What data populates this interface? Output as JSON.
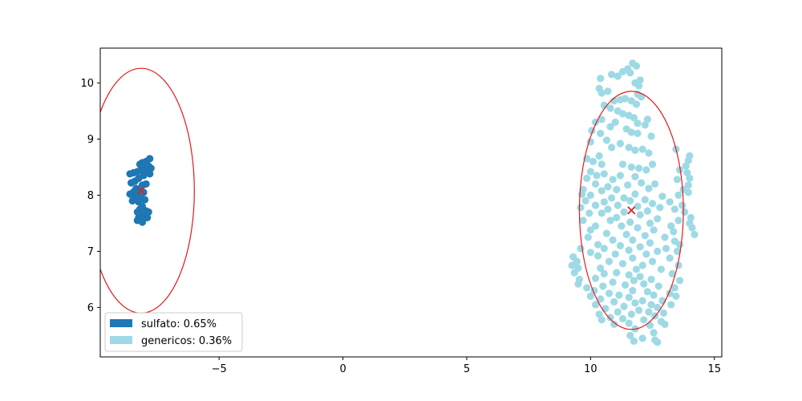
{
  "chart_data": {
    "type": "scatter",
    "title": "",
    "xlabel": "",
    "ylabel": "",
    "xlim": [
      -9.8,
      15.3
    ],
    "ylim": [
      5.12,
      10.62
    ],
    "x_ticks": [
      -5,
      0,
      5,
      10,
      15
    ],
    "y_ticks": [
      6,
      7,
      8,
      9,
      10
    ],
    "x_tick_labels": [
      "−5",
      "0",
      "5",
      "10",
      "15"
    ],
    "y_tick_labels": [
      "6",
      "7",
      "8",
      "9",
      "10"
    ],
    "grid": false,
    "legend_position": "lower-left",
    "legend": [
      "sulfato: 0.65%",
      "genericos: 0.36%"
    ],
    "series": [
      {
        "name": "sulfato: 0.65%",
        "color": "#1f77b4",
        "centroid": [
          -8.15,
          8.08
        ],
        "ellipse": {
          "center": [
            -8.15,
            8.08
          ],
          "half_width_x": 2.15,
          "half_height_y": 2.18,
          "color": "#e31a1c"
        },
        "points": [
          [
            -7.8,
            8.65
          ],
          [
            -7.95,
            8.6
          ],
          [
            -8.1,
            8.58
          ],
          [
            -8.2,
            8.55
          ],
          [
            -7.85,
            8.52
          ],
          [
            -8.0,
            8.5
          ],
          [
            -7.75,
            8.48
          ],
          [
            -8.15,
            8.45
          ],
          [
            -8.3,
            8.42
          ],
          [
            -7.9,
            8.4
          ],
          [
            -8.45,
            8.4
          ],
          [
            -8.6,
            8.38
          ],
          [
            -7.8,
            8.38
          ],
          [
            -8.05,
            8.35
          ],
          [
            -8.25,
            8.3
          ],
          [
            -8.4,
            8.25
          ],
          [
            -7.95,
            8.2
          ],
          [
            -8.1,
            8.18
          ],
          [
            -8.55,
            8.22
          ],
          [
            -8.35,
            8.12
          ],
          [
            -8.2,
            8.1
          ],
          [
            -8.45,
            8.06
          ],
          [
            -8.6,
            8.02
          ],
          [
            -8.3,
            8.0
          ],
          [
            -8.05,
            8.05
          ],
          [
            -8.15,
            7.95
          ],
          [
            -8.4,
            7.95
          ],
          [
            -8.5,
            7.9
          ],
          [
            -8.25,
            7.88
          ],
          [
            -8.0,
            7.92
          ],
          [
            -8.1,
            7.8
          ],
          [
            -8.2,
            7.75
          ],
          [
            -7.95,
            7.72
          ],
          [
            -8.3,
            7.7
          ],
          [
            -8.0,
            7.68
          ],
          [
            -7.85,
            7.7
          ],
          [
            -8.15,
            7.65
          ],
          [
            -8.25,
            7.6
          ],
          [
            -7.9,
            7.6
          ],
          [
            -8.05,
            7.58
          ],
          [
            -8.3,
            7.55
          ],
          [
            -8.1,
            7.52
          ]
        ]
      },
      {
        "name": "genericos: 0.36%",
        "color": "#9edae5",
        "centroid": [
          11.65,
          7.73
        ],
        "ellipse": {
          "center": [
            11.65,
            7.73
          ],
          "half_width_x": 2.1,
          "half_height_y": 2.12,
          "color": "#e31a1c"
        },
        "points": [
          [
            11.7,
            10.35
          ],
          [
            11.85,
            10.3
          ],
          [
            11.5,
            10.25
          ],
          [
            11.3,
            10.2
          ],
          [
            11.6,
            10.18
          ],
          [
            11.1,
            10.12
          ],
          [
            10.85,
            10.15
          ],
          [
            12.0,
            10.05
          ],
          [
            11.8,
            10.0
          ],
          [
            11.95,
            9.95
          ],
          [
            10.4,
            10.08
          ],
          [
            10.35,
            9.9
          ],
          [
            10.45,
            9.82
          ],
          [
            10.7,
            9.85
          ],
          [
            11.9,
            9.8
          ],
          [
            12.05,
            9.75
          ],
          [
            11.4,
            9.72
          ],
          [
            11.2,
            9.7
          ],
          [
            10.95,
            9.68
          ],
          [
            11.65,
            9.68
          ],
          [
            11.85,
            9.62
          ],
          [
            10.55,
            9.6
          ],
          [
            10.8,
            9.55
          ],
          [
            11.1,
            9.5
          ],
          [
            11.3,
            9.45
          ],
          [
            11.55,
            9.42
          ],
          [
            11.75,
            9.38
          ],
          [
            12.3,
            9.35
          ],
          [
            10.45,
            9.35
          ],
          [
            10.2,
            9.3
          ],
          [
            11.0,
            9.3
          ],
          [
            11.9,
            9.28
          ],
          [
            12.2,
            9.25
          ],
          [
            10.8,
            9.22
          ],
          [
            10.05,
            9.15
          ],
          [
            11.45,
            9.18
          ],
          [
            11.65,
            9.12
          ],
          [
            11.9,
            9.1
          ],
          [
            10.4,
            9.1
          ],
          [
            10.0,
            8.95
          ],
          [
            12.45,
            9.05
          ],
          [
            10.65,
            8.98
          ],
          [
            11.2,
            8.92
          ],
          [
            10.85,
            8.85
          ],
          [
            11.55,
            8.85
          ],
          [
            11.8,
            8.8
          ],
          [
            12.1,
            8.82
          ],
          [
            12.35,
            8.75
          ],
          [
            13.45,
            8.82
          ],
          [
            14.0,
            8.7
          ],
          [
            13.95,
            8.62
          ],
          [
            10.35,
            8.7
          ],
          [
            9.85,
            8.65
          ],
          [
            10.1,
            8.6
          ],
          [
            10.45,
            8.55
          ],
          [
            11.3,
            8.55
          ],
          [
            12.5,
            8.55
          ],
          [
            11.65,
            8.5
          ],
          [
            13.85,
            8.52
          ],
          [
            11.95,
            8.48
          ],
          [
            10.0,
            8.42
          ],
          [
            12.25,
            8.45
          ],
          [
            13.6,
            8.45
          ],
          [
            10.55,
            8.38
          ],
          [
            10.25,
            8.35
          ],
          [
            13.9,
            8.4
          ],
          [
            11.2,
            8.35
          ],
          [
            11.8,
            8.33
          ],
          [
            9.85,
            8.3
          ],
          [
            14.0,
            8.3
          ],
          [
            10.9,
            8.28
          ],
          [
            13.5,
            8.28
          ],
          [
            10.2,
            8.2
          ],
          [
            12.05,
            8.22
          ],
          [
            12.6,
            8.2
          ],
          [
            13.95,
            8.18
          ],
          [
            11.5,
            8.18
          ],
          [
            10.7,
            8.15
          ],
          [
            11.05,
            8.1
          ],
          [
            12.35,
            8.12
          ],
          [
            13.75,
            8.1
          ],
          [
            9.7,
            8.1
          ],
          [
            10.45,
            8.08
          ],
          [
            9.65,
            8.02
          ],
          [
            11.8,
            8.02
          ],
          [
            10.0,
            8.0
          ],
          [
            12.9,
            7.98
          ],
          [
            13.55,
            8.0
          ],
          [
            11.35,
            7.95
          ],
          [
            10.85,
            7.95
          ],
          [
            12.2,
            7.92
          ],
          [
            13.95,
            8.05
          ],
          [
            9.8,
            7.9
          ],
          [
            11.6,
            7.9
          ],
          [
            10.55,
            7.88
          ],
          [
            13.2,
            7.88
          ],
          [
            12.5,
            7.85
          ],
          [
            10.2,
            7.82
          ],
          [
            11.1,
            7.82
          ],
          [
            11.9,
            7.8
          ],
          [
            13.7,
            7.82
          ],
          [
            9.6,
            7.78
          ],
          [
            12.8,
            7.78
          ],
          [
            10.7,
            7.75
          ],
          [
            13.4,
            7.75
          ],
          [
            12.3,
            7.72
          ],
          [
            11.35,
            7.7
          ],
          [
            13.8,
            7.7
          ],
          [
            9.95,
            7.68
          ],
          [
            10.45,
            7.68
          ],
          [
            12.0,
            7.65
          ],
          [
            14.05,
            7.6
          ],
          [
            11.05,
            7.6
          ],
          [
            12.7,
            7.58
          ],
          [
            13.55,
            7.55
          ],
          [
            10.8,
            7.55
          ],
          [
            9.7,
            7.55
          ],
          [
            11.6,
            7.52
          ],
          [
            12.4,
            7.5
          ],
          [
            14.0,
            7.5
          ],
          [
            10.2,
            7.45
          ],
          [
            11.25,
            7.45
          ],
          [
            13.25,
            7.45
          ],
          [
            11.9,
            7.42
          ],
          [
            14.1,
            7.42
          ],
          [
            10.0,
            7.38
          ],
          [
            12.55,
            7.38
          ],
          [
            13.35,
            7.35
          ],
          [
            10.65,
            7.32
          ],
          [
            11.45,
            7.3
          ],
          [
            14.2,
            7.3
          ],
          [
            12.2,
            7.28
          ],
          [
            9.9,
            7.25
          ],
          [
            13.0,
            7.25
          ],
          [
            10.9,
            7.2
          ],
          [
            11.7,
            7.2
          ],
          [
            13.4,
            7.18
          ],
          [
            12.4,
            7.15
          ],
          [
            10.3,
            7.12
          ],
          [
            13.6,
            7.12
          ],
          [
            11.2,
            7.1
          ],
          [
            12.0,
            7.08
          ],
          [
            9.6,
            7.05
          ],
          [
            10.55,
            7.05
          ],
          [
            13.05,
            7.05
          ],
          [
            11.55,
            7.02
          ],
          [
            12.7,
            7.0
          ],
          [
            13.5,
            7.0
          ],
          [
            10.0,
            6.98
          ],
          [
            11.0,
            6.95
          ],
          [
            12.25,
            6.95
          ],
          [
            10.3,
            6.92
          ],
          [
            9.3,
            6.9
          ],
          [
            11.7,
            6.88
          ],
          [
            13.2,
            6.88
          ],
          [
            9.45,
            6.82
          ],
          [
            10.75,
            6.82
          ],
          [
            12.5,
            6.82
          ],
          [
            11.3,
            6.78
          ],
          [
            9.25,
            6.75
          ],
          [
            12.1,
            6.75
          ],
          [
            13.55,
            6.75
          ],
          [
            9.5,
            6.7
          ],
          [
            10.4,
            6.7
          ],
          [
            11.85,
            6.68
          ],
          [
            12.85,
            6.68
          ],
          [
            9.35,
            6.62
          ],
          [
            11.05,
            6.62
          ],
          [
            10.55,
            6.6
          ],
          [
            13.3,
            6.6
          ],
          [
            11.55,
            6.58
          ],
          [
            12.0,
            6.55
          ],
          [
            9.55,
            6.5
          ],
          [
            10.2,
            6.52
          ],
          [
            12.45,
            6.5
          ],
          [
            11.75,
            6.48
          ],
          [
            9.5,
            6.42
          ],
          [
            10.9,
            6.45
          ],
          [
            13.6,
            6.48
          ],
          [
            12.15,
            6.42
          ],
          [
            11.4,
            6.4
          ],
          [
            10.5,
            6.38
          ],
          [
            9.85,
            6.35
          ],
          [
            12.75,
            6.38
          ],
          [
            13.4,
            6.35
          ],
          [
            10.15,
            6.3
          ],
          [
            11.7,
            6.3
          ],
          [
            12.3,
            6.28
          ],
          [
            10.75,
            6.25
          ],
          [
            13.2,
            6.25
          ],
          [
            11.15,
            6.22
          ],
          [
            10.0,
            6.2
          ],
          [
            12.55,
            6.22
          ],
          [
            11.55,
            6.18
          ],
          [
            13.45,
            6.2
          ],
          [
            10.4,
            6.15
          ],
          [
            12.1,
            6.12
          ],
          [
            12.9,
            6.12
          ],
          [
            10.95,
            6.1
          ],
          [
            11.8,
            6.08
          ],
          [
            12.45,
            6.05
          ],
          [
            13.25,
            6.05
          ],
          [
            10.2,
            6.05
          ],
          [
            11.35,
            6.02
          ],
          [
            12.7,
            6.0
          ],
          [
            10.6,
            5.98
          ],
          [
            11.95,
            5.95
          ],
          [
            12.35,
            5.92
          ],
          [
            11.1,
            5.92
          ],
          [
            12.95,
            5.9
          ],
          [
            10.35,
            5.88
          ],
          [
            11.65,
            5.88
          ],
          [
            12.6,
            5.85
          ],
          [
            10.8,
            5.82
          ],
          [
            11.3,
            5.8
          ],
          [
            12.15,
            5.78
          ],
          [
            10.45,
            5.78
          ],
          [
            12.85,
            5.75
          ],
          [
            11.55,
            5.72
          ],
          [
            10.95,
            5.7
          ],
          [
            13.0,
            5.7
          ],
          [
            12.4,
            5.68
          ],
          [
            11.8,
            5.62
          ],
          [
            12.55,
            5.55
          ],
          [
            11.6,
            5.5
          ],
          [
            12.1,
            5.45
          ],
          [
            12.6,
            5.42
          ],
          [
            11.75,
            5.4
          ],
          [
            12.7,
            5.38
          ]
        ]
      }
    ]
  }
}
